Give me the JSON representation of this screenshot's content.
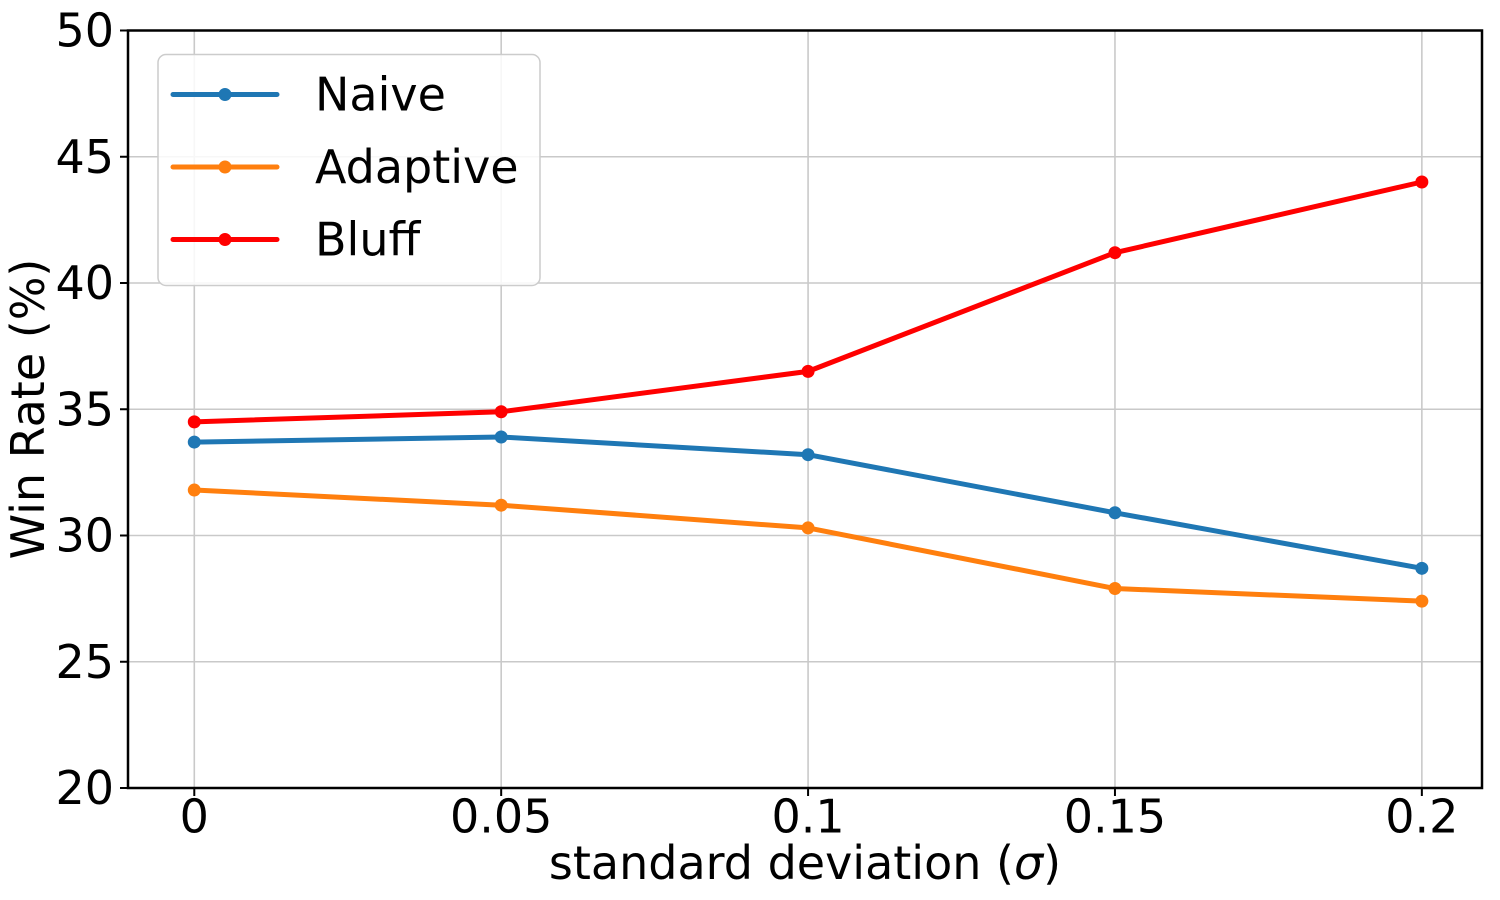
{
  "chart_data": {
    "type": "line",
    "title": "",
    "xlabel_prefix": "standard deviation (",
    "xlabel_sigma": "σ",
    "xlabel_suffix": ")",
    "ylabel": "Win Rate (%)",
    "x": [
      0,
      0.05,
      0.1,
      0.15,
      0.2
    ],
    "x_tick_labels": [
      "0",
      "0.05",
      "0.1",
      "0.15",
      "0.2"
    ],
    "y_ticks": [
      20,
      25,
      30,
      35,
      40,
      45,
      50
    ],
    "y_tick_labels": [
      "20",
      "25",
      "30",
      "35",
      "40",
      "45",
      "50"
    ],
    "xlim": [
      -0.0108,
      0.2098
    ],
    "ylim": [
      20,
      50
    ],
    "grid": true,
    "legend": {
      "position": "upper left",
      "entries": [
        "Naive",
        "Adaptive",
        "Bluff"
      ]
    },
    "series": [
      {
        "name": "Naive",
        "color": "#1f77b4",
        "values": [
          33.7,
          33.9,
          33.2,
          30.9,
          28.7
        ]
      },
      {
        "name": "Adaptive",
        "color": "#ff7f0e",
        "values": [
          31.8,
          31.2,
          30.3,
          27.9,
          27.4
        ]
      },
      {
        "name": "Bluff",
        "color": "#ff0000",
        "values": [
          34.5,
          34.9,
          36.5,
          41.2,
          44.0
        ]
      }
    ],
    "colors": {
      "grid": "#c9c9c9",
      "spine": "#000000",
      "text": "#000000",
      "legend_border": "#cccccc",
      "legend_bg": "#ffffff"
    }
  }
}
